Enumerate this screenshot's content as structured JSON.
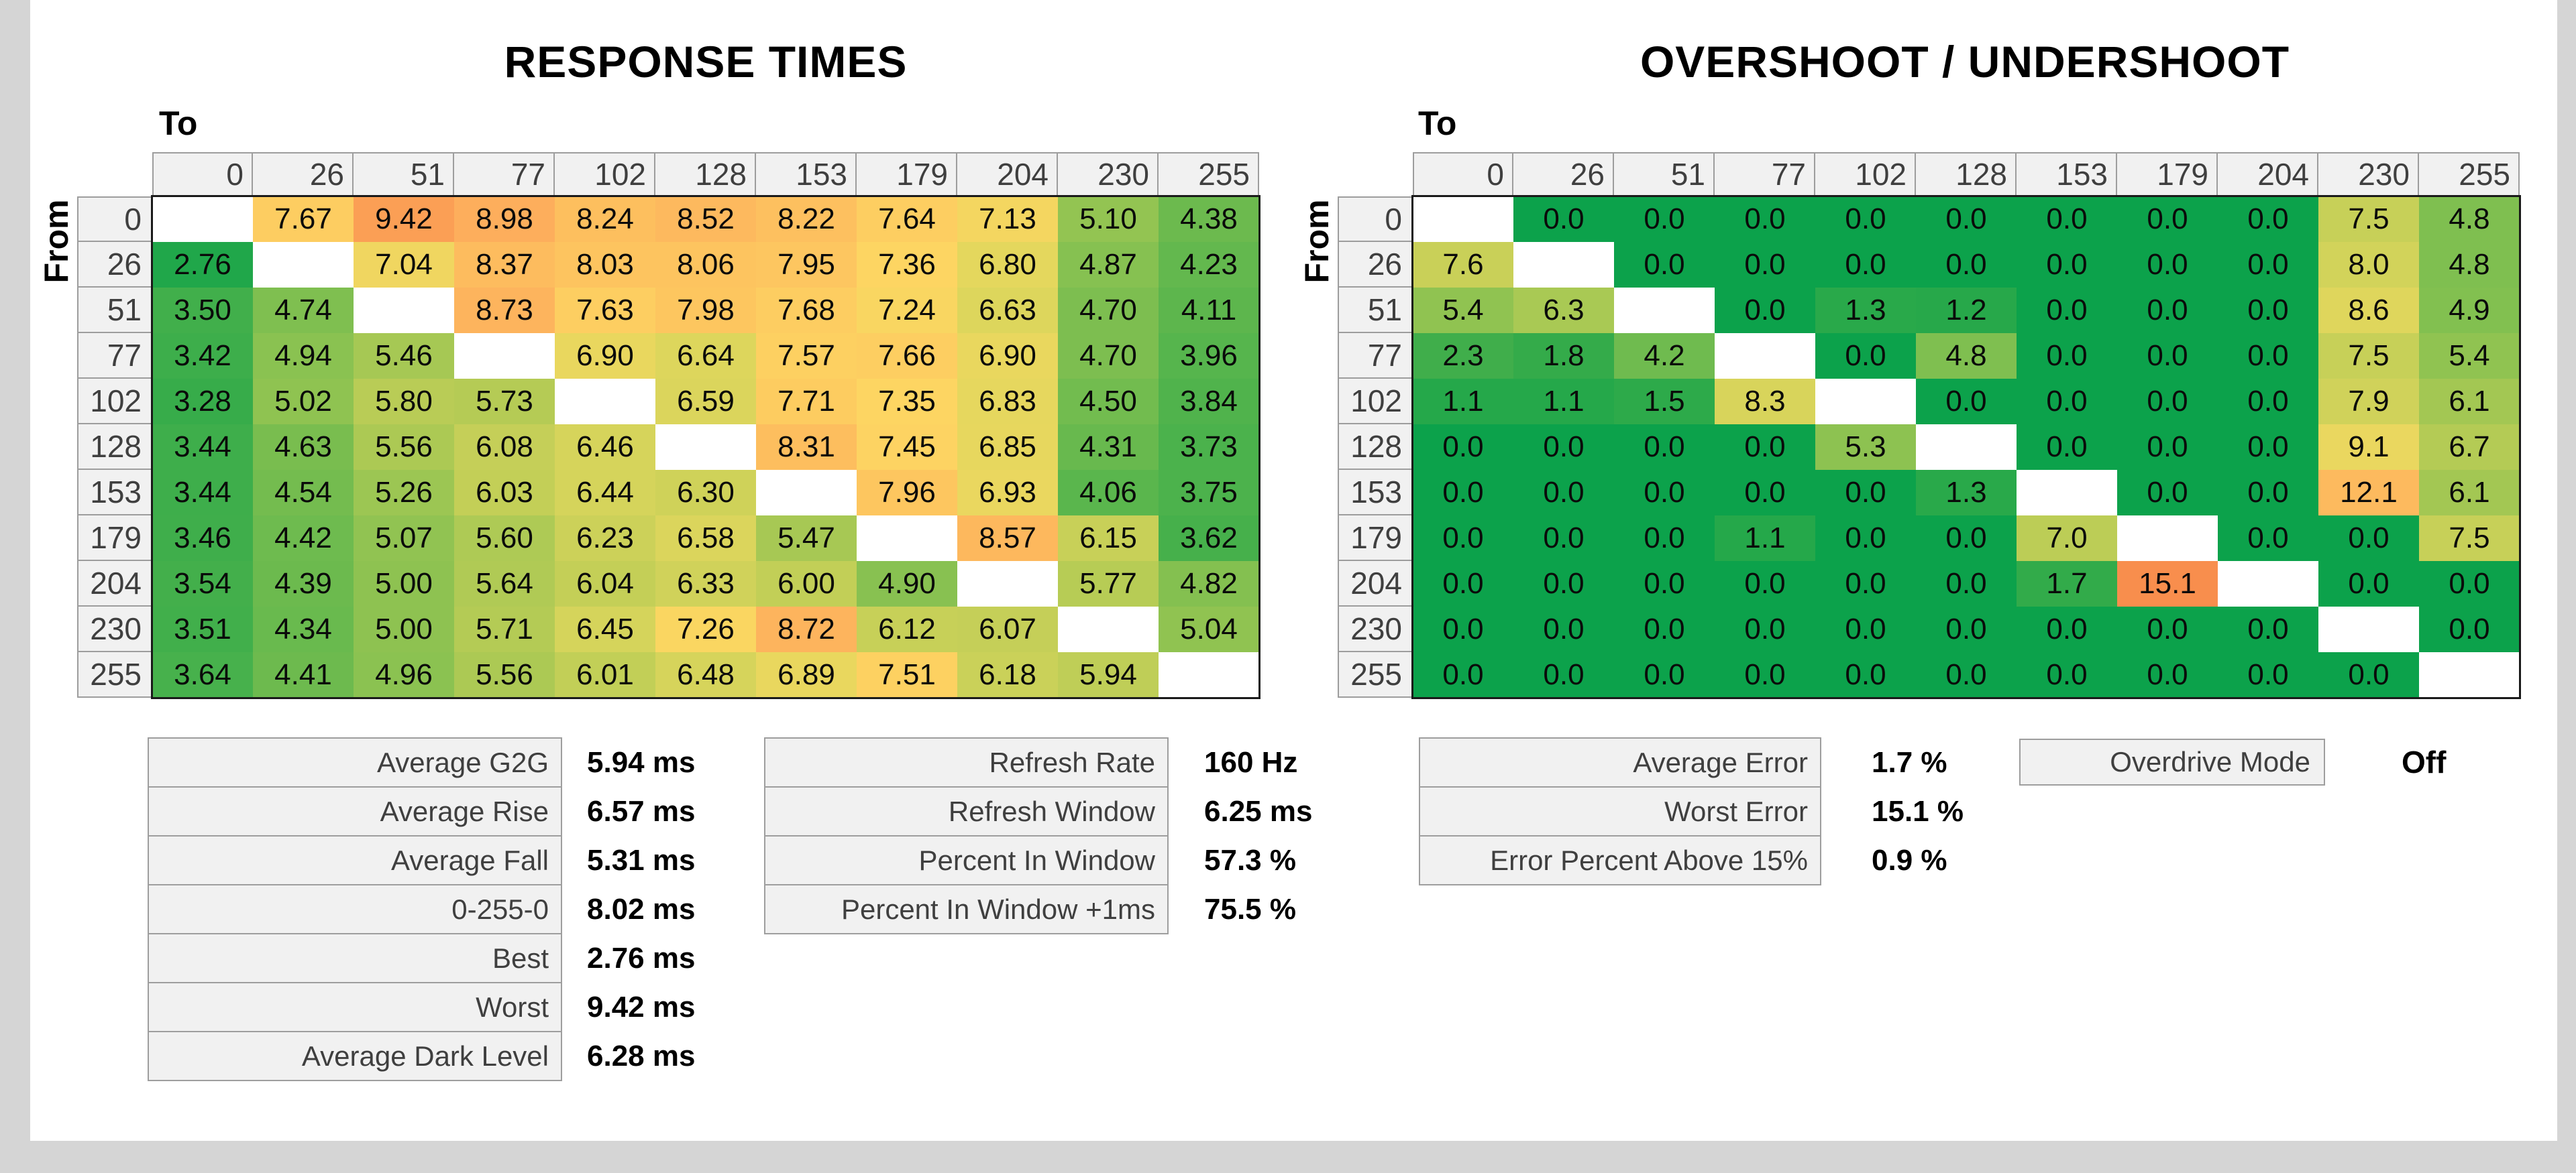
{
  "background_color": "#D5D5D5",
  "paper_color": "#FFFFFF",
  "chart_data": [
    {
      "type": "heatmap",
      "title": "RESPONSE TIMES",
      "x_axis_label": "To",
      "y_axis_label": "From",
      "unit": "ms",
      "categories": [
        "0",
        "26",
        "51",
        "77",
        "102",
        "128",
        "153",
        "179",
        "204",
        "230",
        "255"
      ],
      "decimals": 2,
      "color_domain": [
        2.3,
        11.2
      ],
      "values": [
        [
          null,
          7.67,
          9.42,
          8.98,
          8.24,
          8.52,
          8.22,
          7.64,
          7.13,
          5.1,
          4.38
        ],
        [
          2.76,
          null,
          7.04,
          8.37,
          8.03,
          8.06,
          7.95,
          7.36,
          6.8,
          4.87,
          4.23
        ],
        [
          3.5,
          4.74,
          null,
          8.73,
          7.63,
          7.98,
          7.68,
          7.24,
          6.63,
          4.7,
          4.11
        ],
        [
          3.42,
          4.94,
          5.46,
          null,
          6.9,
          6.64,
          7.57,
          7.66,
          6.9,
          4.7,
          3.96
        ],
        [
          3.28,
          5.02,
          5.8,
          5.73,
          null,
          6.59,
          7.71,
          7.35,
          6.83,
          4.5,
          3.84
        ],
        [
          3.44,
          4.63,
          5.56,
          6.08,
          6.46,
          null,
          8.31,
          7.45,
          6.85,
          4.31,
          3.73
        ],
        [
          3.44,
          4.54,
          5.26,
          6.03,
          6.44,
          6.3,
          null,
          7.96,
          6.93,
          4.06,
          3.75
        ],
        [
          3.46,
          4.42,
          5.07,
          5.6,
          6.23,
          6.58,
          5.47,
          null,
          8.57,
          6.15,
          3.62
        ],
        [
          3.54,
          4.39,
          5.0,
          5.64,
          6.04,
          6.33,
          6.0,
          4.9,
          null,
          5.77,
          4.82
        ],
        [
          3.51,
          4.34,
          5.0,
          5.71,
          6.45,
          7.26,
          8.72,
          6.12,
          6.07,
          null,
          5.04
        ],
        [
          3.64,
          4.41,
          4.96,
          5.56,
          6.01,
          6.48,
          6.89,
          7.51,
          6.18,
          5.94,
          null
        ]
      ]
    },
    {
      "type": "heatmap",
      "title": "OVERSHOOT / UNDERSHOOT",
      "x_axis_label": "To",
      "y_axis_label": "From",
      "unit": "%",
      "categories": [
        "0",
        "26",
        "51",
        "77",
        "102",
        "128",
        "153",
        "179",
        "204",
        "230",
        "255"
      ],
      "decimals": 1,
      "color_domain": [
        0,
        17.5
      ],
      "values": [
        [
          null,
          0.0,
          0.0,
          0.0,
          0.0,
          0.0,
          0.0,
          0.0,
          0.0,
          7.5,
          4.8
        ],
        [
          7.6,
          null,
          0.0,
          0.0,
          0.0,
          0.0,
          0.0,
          0.0,
          0.0,
          8.0,
          4.8
        ],
        [
          5.4,
          6.3,
          null,
          0.0,
          1.3,
          1.2,
          0.0,
          0.0,
          0.0,
          8.6,
          4.9
        ],
        [
          2.3,
          1.8,
          4.2,
          null,
          0.0,
          4.8,
          0.0,
          0.0,
          0.0,
          7.5,
          5.4
        ],
        [
          1.1,
          1.1,
          1.5,
          8.3,
          null,
          0.0,
          0.0,
          0.0,
          0.0,
          7.9,
          6.1
        ],
        [
          0.0,
          0.0,
          0.0,
          0.0,
          5.3,
          null,
          0.0,
          0.0,
          0.0,
          9.1,
          6.7
        ],
        [
          0.0,
          0.0,
          0.0,
          0.0,
          0.0,
          1.3,
          null,
          0.0,
          0.0,
          12.1,
          6.1
        ],
        [
          0.0,
          0.0,
          0.0,
          1.1,
          0.0,
          0.0,
          7.0,
          null,
          0.0,
          0.0,
          7.5
        ],
        [
          0.0,
          0.0,
          0.0,
          0.0,
          0.0,
          0.0,
          1.7,
          15.1,
          null,
          0.0,
          0.0
        ],
        [
          0.0,
          0.0,
          0.0,
          0.0,
          0.0,
          0.0,
          0.0,
          0.0,
          0.0,
          null,
          0.0
        ],
        [
          0.0,
          0.0,
          0.0,
          0.0,
          0.0,
          0.0,
          0.0,
          0.0,
          0.0,
          0.0,
          null
        ]
      ]
    }
  ],
  "colormap": {
    "null_cell": "#FFFFFF",
    "stops": [
      [
        0.0,
        "#0CA24B"
      ],
      [
        0.1,
        "#33AB4A"
      ],
      [
        0.2,
        "#5BB64D"
      ],
      [
        0.3,
        "#8CC251"
      ],
      [
        0.4,
        "#BCCD56"
      ],
      [
        0.5,
        "#E2D75D"
      ],
      [
        0.565,
        "#FDD662"
      ],
      [
        0.65,
        "#FDC35F"
      ],
      [
        0.75,
        "#FDAE5C"
      ],
      [
        0.85,
        "#F9914F"
      ],
      [
        1.0,
        "#EF6C3B"
      ]
    ]
  },
  "stats": {
    "response": {
      "rows": [
        {
          "label": "Average G2G",
          "value": "5.94 ms"
        },
        {
          "label": "Average Rise",
          "value": "6.57 ms"
        },
        {
          "label": "Average Fall",
          "value": "5.31 ms"
        },
        {
          "label": "0-255-0",
          "value": "8.02 ms"
        },
        {
          "label": "Best",
          "value": "2.76 ms"
        },
        {
          "label": "Worst",
          "value": "9.42 ms"
        },
        {
          "label": "Average Dark Level",
          "value": "6.28 ms"
        }
      ]
    },
    "window": {
      "rows": [
        {
          "label": "Refresh Rate",
          "value": "160 Hz"
        },
        {
          "label": "Refresh Window",
          "value": "6.25 ms"
        },
        {
          "label": "Percent In Window",
          "value": "57.3 %"
        },
        {
          "label": "Percent In Window +1ms",
          "value": "75.5 %"
        }
      ]
    },
    "error": {
      "rows": [
        {
          "label": "Average Error",
          "value": "1.7 %"
        },
        {
          "label": "Worst Error",
          "value": "15.1 %"
        },
        {
          "label": "Error Percent Above 15%",
          "value": "0.9 %"
        }
      ]
    }
  },
  "overdrive": {
    "label": "Overdrive Mode",
    "value": "Off"
  }
}
